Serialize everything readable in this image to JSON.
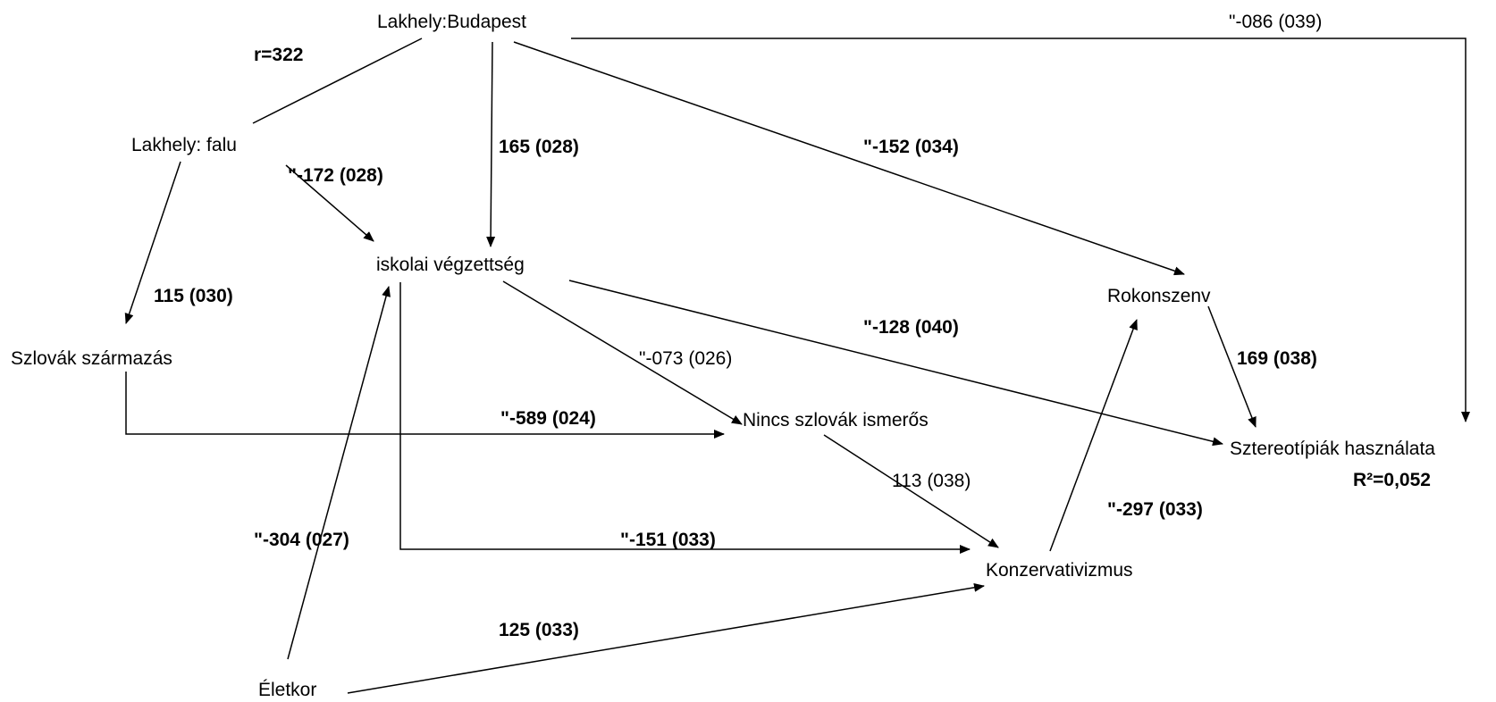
{
  "nodes": {
    "budapest": "Lakhely:Budapest",
    "falu": "Lakhely: falu",
    "szlovak": "Szlovák származás",
    "iskolai": "iskolai végzettség",
    "rokonszenv": "Rokonszenv",
    "nincs": "Nincs szlovák ismerős",
    "sztereo": "Sztereotípiák használata",
    "konzerv": "Konzervativizmus",
    "eletkor": "Életkor"
  },
  "labels": {
    "r": "r=322",
    "budapest_sztereo": "\"-086 (039)",
    "falu_iskolai": "\"-172 (028)",
    "budapest_iskolai": "165 (028)",
    "budapest_rokonszenv": "\"-152 (034)",
    "falu_szlovak": "115 (030)",
    "iskolai_sztereo": "\"-128 (040)",
    "iskolai_nincs": "\"-073 (026)",
    "rokonszenv_sztereo": "169 (038)",
    "szlovak_nincs": "\"-589 (024)",
    "nincs_konzerv": "113 (038)",
    "r2": "R²=0,052",
    "konzerv_rokonszenv": "\"-297 (033)",
    "eletkor_iskolai": "\"-304 (027)",
    "iskolai_konzerv": "\"-151 (033)",
    "eletkor_konzerv": "125 (033)"
  }
}
